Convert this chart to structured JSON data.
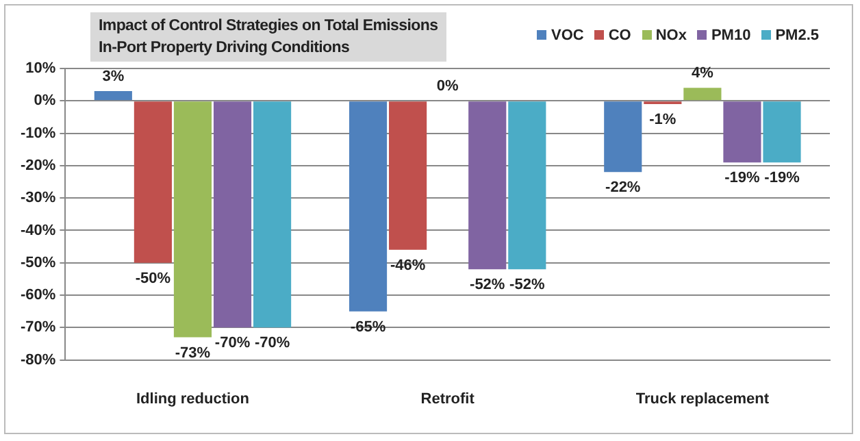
{
  "chart_data": {
    "type": "bar",
    "title": "Impact of Control Strategies on Total Emissions",
    "subtitle": "In-Port Property Driving Conditions",
    "categories": [
      "Idling reduction",
      "Retrofit",
      "Truck replacement"
    ],
    "series": [
      {
        "name": "VOC",
        "color": "#4f81bd",
        "values": [
          3,
          -65,
          -22
        ],
        "value_labels": [
          "3%",
          "-65%",
          "-22%"
        ]
      },
      {
        "name": "CO",
        "color": "#c0504d",
        "values": [
          -50,
          -46,
          -1
        ],
        "value_labels": [
          "-50%",
          "-46%",
          "-1%"
        ]
      },
      {
        "name": "NOx",
        "color": "#9bbb59",
        "values": [
          -73,
          0,
          4
        ],
        "value_labels": [
          "-73%",
          "0%",
          "4%"
        ]
      },
      {
        "name": "PM10",
        "color": "#8064a2",
        "values": [
          -70,
          -52,
          -19
        ],
        "value_labels": [
          "-70%",
          "-52%",
          "-19%"
        ]
      },
      {
        "name": "PM2.5",
        "color": "#4bacc6",
        "values": [
          -70,
          -52,
          -19
        ],
        "value_labels": [
          "-70%",
          "-52%",
          "-19%"
        ]
      }
    ],
    "ylim": [
      -80,
      10
    ],
    "yticks": [
      {
        "value": -80,
        "label": "-80%"
      },
      {
        "value": -70,
        "label": "-70%"
      },
      {
        "value": -60,
        "label": "-60%"
      },
      {
        "value": -50,
        "label": "-50%"
      },
      {
        "value": -40,
        "label": "-40%"
      },
      {
        "value": -30,
        "label": "-30%"
      },
      {
        "value": -20,
        "label": "-20%"
      },
      {
        "value": -10,
        "label": "-10%"
      },
      {
        "value": 0,
        "label": "0%"
      },
      {
        "value": 10,
        "label": "10%"
      }
    ],
    "grid": "y",
    "legend": "top right"
  }
}
